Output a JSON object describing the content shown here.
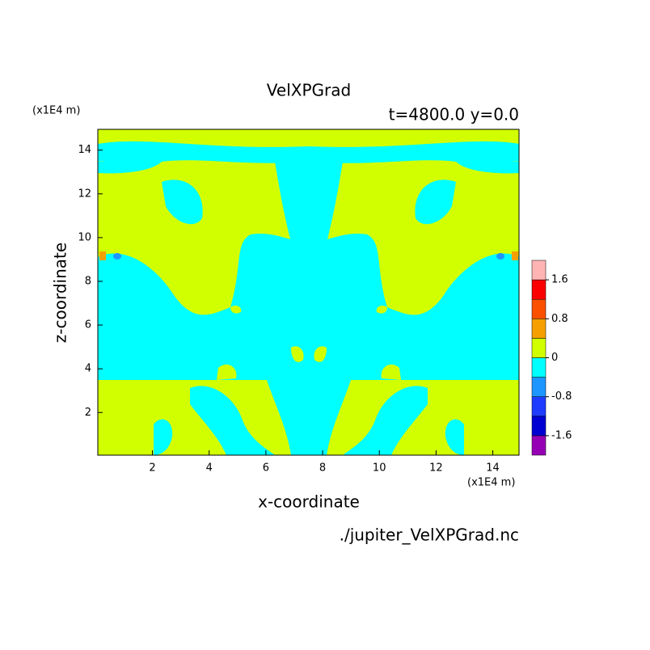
{
  "chart_data": {
    "type": "contour",
    "title": "VelXPGrad",
    "subtitle": "t=4800.0 y=0.0",
    "xlabel": "x-coordinate",
    "ylabel": "z-coordinate",
    "xunits": "(x1E4 m)",
    "yunits": "(x1E4 m)",
    "source": "./jupiter_VelXPGrad.nc",
    "xlim": [
      0.075,
      14.925
    ],
    "ylim": [
      0.05,
      14.95
    ],
    "xticks": [
      2,
      4,
      6,
      8,
      10,
      12,
      14
    ],
    "yticks": [
      2,
      4,
      6,
      8,
      10,
      12,
      14
    ],
    "levels": [
      -1.6,
      -1.2,
      -0.8,
      -0.4,
      0,
      0.4,
      0.8,
      1.2,
      1.6
    ],
    "level_ticks": [
      -1.6,
      -0.8,
      0,
      0.8,
      1.6
    ],
    "colors": [
      "#9600b4",
      "#0000d2",
      "#1e3cff",
      "#1e96ff",
      "#00ffff",
      "#d2ff00",
      "#f5a000",
      "#fa5000",
      "#fa0000",
      "#ffb4b4"
    ]
  }
}
